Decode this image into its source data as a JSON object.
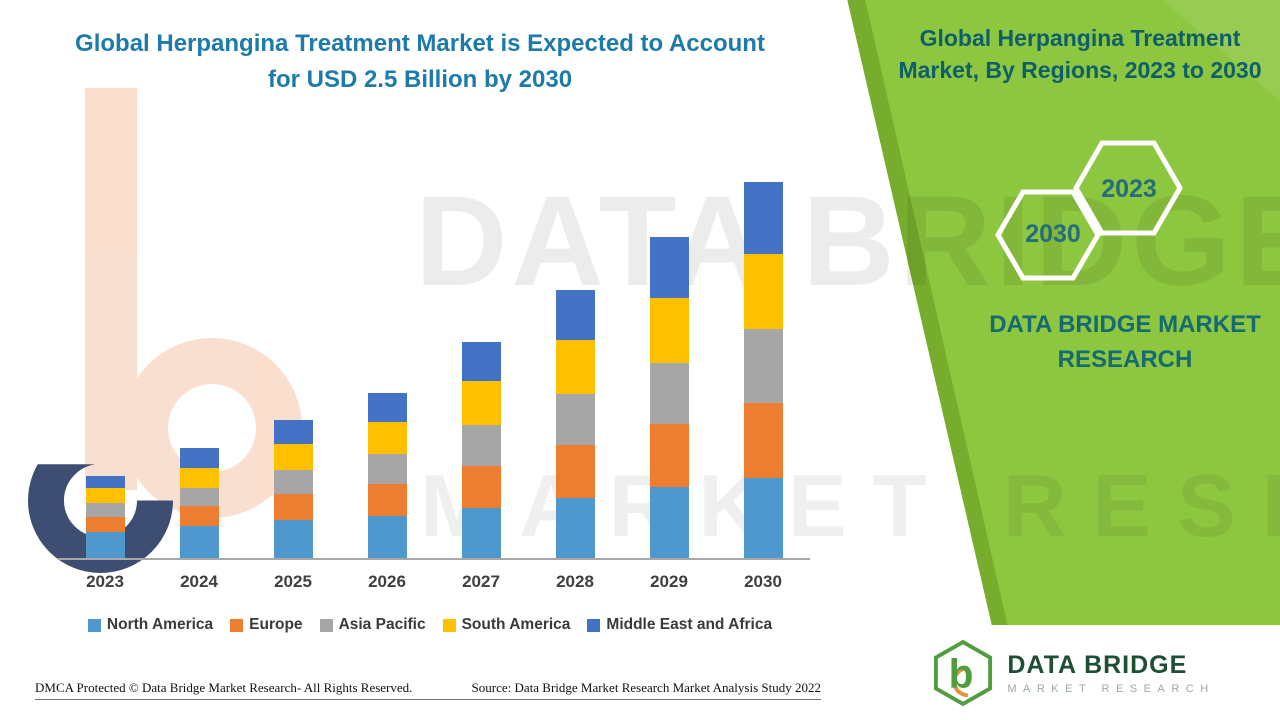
{
  "header": {
    "title_line1": "Global Herpangina Treatment Market is Expected to Account",
    "title_line2": "for USD 2.5 Billion by 2030"
  },
  "side_panel": {
    "title_line1": "Global Herpangina Treatment",
    "title_line2": "Market, By Regions, 2023 to 2030",
    "hex_2023": "2023",
    "hex_2030": "2030",
    "brand_line1": "DATA BRIDGE MARKET",
    "brand_line2": "RESEARCH",
    "panel_color": "#8dc63f"
  },
  "watermark": {
    "line1": "DATA BRIDGE",
    "line2": "MARKET RESEARCH"
  },
  "footer": {
    "dmca": "DMCA Protected © Data Bridge Market Research- All Rights Reserved.",
    "source": "Source: Data Bridge Market Research Market Analysis Study 2022"
  },
  "logo_card": {
    "name": "DATA BRIDGE",
    "subtitle": "MARKET RESEARCH"
  },
  "chart_data": {
    "type": "bar",
    "stacked": true,
    "title": "Global Herpangina Treatment Market is Expected to Account for USD 2.5 Billion by 2030",
    "unit": "USD Billion",
    "categories": [
      "2023",
      "2024",
      "2025",
      "2026",
      "2027",
      "2028",
      "2029",
      "2030"
    ],
    "series": [
      {
        "name": "North America",
        "color": "#4f98cd",
        "values": [
          0.17,
          0.21,
          0.25,
          0.28,
          0.33,
          0.4,
          0.47,
          0.53
        ]
      },
      {
        "name": "Europe",
        "color": "#ed7d31",
        "values": [
          0.1,
          0.13,
          0.17,
          0.21,
          0.28,
          0.35,
          0.42,
          0.5
        ]
      },
      {
        "name": "Asia Pacific",
        "color": "#a6a6a6",
        "values": [
          0.09,
          0.12,
          0.16,
          0.2,
          0.27,
          0.34,
          0.41,
          0.49
        ]
      },
      {
        "name": "South America",
        "color": "#ffc000",
        "values": [
          0.1,
          0.13,
          0.17,
          0.21,
          0.29,
          0.36,
          0.43,
          0.5
        ]
      },
      {
        "name": "Middle East and Africa",
        "color": "#4472c4",
        "values": [
          0.08,
          0.13,
          0.16,
          0.19,
          0.26,
          0.33,
          0.41,
          0.48
        ]
      }
    ],
    "totals": [
      0.54,
      0.72,
      0.91,
      1.09,
      1.43,
      1.78,
      2.14,
      2.5
    ],
    "ylim": [
      0,
      2.6
    ],
    "grid": false,
    "y_axis_visible": false,
    "legend_position": "bottom"
  }
}
